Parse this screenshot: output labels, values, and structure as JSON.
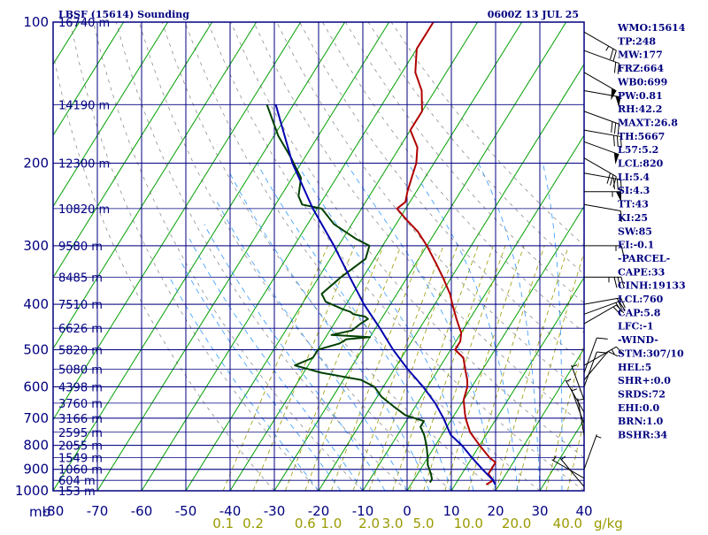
{
  "header": {
    "station": "LBSF (15614) Sounding",
    "time": "0600Z 13 JUL 25"
  },
  "stats": [
    "WMO:15614",
    "TP:248",
    "MW:177",
    "FRZ:664",
    "WB0:699",
    "PW:0.81",
    "RH:42.2",
    "MAXT:26.8",
    "TH:5667",
    "L57:5.2",
    "LCL:820",
    "LI:5.4",
    "SI:4.3",
    "TT:43",
    "KI:25",
    "SW:85",
    "EI:-0.1",
    "-PARCEL-",
    "CAPE:33",
    "CINH:19133",
    "LCL:760",
    "CAP:5.8",
    "LFC:-1",
    "-WIND-",
    "STM:307/10",
    "HEL:5",
    "SHR+:0.0",
    "SRDS:72",
    "EHI:0.0",
    "BRN:1.0",
    "BSHR:34"
  ],
  "colors": {
    "frame": "#000080",
    "isotherm": "#00a000",
    "temperature": "#b00000",
    "dewpoint": "#004000",
    "parcel": "#0000b0",
    "mixing_ratio": "#9a9a00",
    "moist_adiabat": "#3399ff",
    "wind_barb": "#000000"
  },
  "chart_data": {
    "type": "line",
    "xlabel": "",
    "ylabel": "mb",
    "ylim": [
      1000,
      100
    ],
    "xlim": [
      -80,
      40
    ],
    "y_scale": "log",
    "skew": true,
    "grid": true,
    "pressure_levels": [
      100,
      200,
      300,
      400,
      500,
      600,
      700,
      800,
      900,
      1000
    ],
    "pressure_labels": [
      "100",
      "200",
      "300",
      "400",
      "500",
      "600",
      "700",
      "800",
      "900",
      "1000"
    ],
    "temp_ticks": [
      -80,
      -70,
      -60,
      -50,
      -40,
      -30,
      -20,
      -10,
      0,
      10,
      20,
      30,
      40
    ],
    "temp_labels": [
      "-80",
      "-70",
      "-60",
      "-50",
      "-40",
      "-30",
      "-20",
      "-10",
      "0",
      "10",
      "20",
      "30",
      "40"
    ],
    "height_labels": [
      {
        "p": 100,
        "text": "16740 m"
      },
      {
        "p": 150,
        "text": "14190 m"
      },
      {
        "p": 200,
        "text": "12300 m"
      },
      {
        "p": 250,
        "text": "10820 m"
      },
      {
        "p": 300,
        "text": "9580 m"
      },
      {
        "p": 350,
        "text": "8485 m"
      },
      {
        "p": 400,
        "text": "7510 m"
      },
      {
        "p": 450,
        "text": "6626 m"
      },
      {
        "p": 500,
        "text": "5820 m"
      },
      {
        "p": 550,
        "text": "5080 m"
      },
      {
        "p": 600,
        "text": "4398 m"
      },
      {
        "p": 650,
        "text": "3760 m"
      },
      {
        "p": 700,
        "text": "3166 m"
      },
      {
        "p": 750,
        "text": "2595 m"
      },
      {
        "p": 800,
        "text": "2055 m"
      },
      {
        "p": 850,
        "text": "1549 m"
      },
      {
        "p": 900,
        "text": "1060 m"
      },
      {
        "p": 950,
        "text": "604 m"
      },
      {
        "p": 1000,
        "text": "153 m"
      }
    ],
    "mixing_ratio_labels": [
      {
        "w": 0.1,
        "text": "0.1"
      },
      {
        "w": 0.2,
        "text": "0.2"
      },
      {
        "w": 0.6,
        "text": "0.6"
      },
      {
        "w": 1.0,
        "text": "1.0"
      },
      {
        "w": 2.0,
        "text": "2.0"
      },
      {
        "w": 3.0,
        "text": "3.0"
      },
      {
        "w": 5.0,
        "text": "5.0"
      },
      {
        "w": 10.0,
        "text": "10.0"
      },
      {
        "w": 20.0,
        "text": "20.0"
      },
      {
        "w": 40.0,
        "text": "40.0"
      }
    ],
    "mixing_ratio_unit": "g/kg",
    "series": [
      {
        "key": "temperature",
        "points": [
          [
            100,
            -60
          ],
          [
            114,
            -60
          ],
          [
            128,
            -57
          ],
          [
            140,
            -53
          ],
          [
            155,
            -50
          ],
          [
            170,
            -50
          ],
          [
            185,
            -46
          ],
          [
            200,
            -44
          ],
          [
            215,
            -43
          ],
          [
            230,
            -42
          ],
          [
            242,
            -41
          ],
          [
            250,
            -42
          ],
          [
            265,
            -38
          ],
          [
            280,
            -34
          ],
          [
            300,
            -30
          ],
          [
            330,
            -25
          ],
          [
            350,
            -22
          ],
          [
            380,
            -18
          ],
          [
            400,
            -16
          ],
          [
            430,
            -13
          ],
          [
            450,
            -11
          ],
          [
            460,
            -10
          ],
          [
            480,
            -9
          ],
          [
            500,
            -9
          ],
          [
            520,
            -6
          ],
          [
            550,
            -4
          ],
          [
            580,
            -2
          ],
          [
            600,
            -1
          ],
          [
            640,
            0
          ],
          [
            680,
            2
          ],
          [
            700,
            3
          ],
          [
            750,
            6
          ],
          [
            800,
            10
          ],
          [
            850,
            14
          ],
          [
            870,
            16
          ],
          [
            900,
            16
          ],
          [
            920,
            16
          ],
          [
            950,
            18
          ],
          [
            970,
            17
          ]
        ]
      },
      {
        "key": "dewpoint",
        "points": [
          [
            150,
            -86
          ],
          [
            175,
            -79
          ],
          [
            195,
            -73
          ],
          [
            215,
            -68
          ],
          [
            235,
            -66
          ],
          [
            245,
            -64
          ],
          [
            250,
            -59
          ],
          [
            270,
            -54
          ],
          [
            290,
            -47
          ],
          [
            300,
            -43
          ],
          [
            320,
            -42
          ],
          [
            350,
            -45
          ],
          [
            380,
            -47
          ],
          [
            395,
            -45
          ],
          [
            410,
            -40
          ],
          [
            415,
            -38
          ],
          [
            420,
            -37
          ],
          [
            425,
            -34
          ],
          [
            430,
            -33
          ],
          [
            440,
            -34
          ],
          [
            455,
            -35
          ],
          [
            465,
            -39
          ],
          [
            470,
            -30
          ],
          [
            475,
            -35
          ],
          [
            485,
            -36
          ],
          [
            500,
            -40
          ],
          [
            520,
            -40
          ],
          [
            540,
            -43
          ],
          [
            560,
            -36
          ],
          [
            580,
            -26
          ],
          [
            600,
            -22
          ],
          [
            630,
            -19
          ],
          [
            660,
            -15
          ],
          [
            690,
            -11
          ],
          [
            710,
            -6
          ],
          [
            730,
            -6
          ],
          [
            760,
            -4
          ],
          [
            800,
            -2
          ],
          [
            850,
            0
          ],
          [
            880,
            1
          ],
          [
            920,
            3
          ],
          [
            945,
            4
          ],
          [
            960,
            4
          ]
        ]
      },
      {
        "key": "parcel",
        "points": [
          [
            150,
            -84
          ],
          [
            200,
            -72
          ],
          [
            250,
            -61
          ],
          [
            300,
            -51
          ],
          [
            350,
            -43
          ],
          [
            400,
            -36
          ],
          [
            450,
            -29
          ],
          [
            500,
            -23
          ],
          [
            550,
            -17
          ],
          [
            600,
            -11
          ],
          [
            650,
            -6
          ],
          [
            700,
            -2
          ],
          [
            760,
            2
          ],
          [
            800,
            6
          ],
          [
            850,
            10
          ],
          [
            900,
            14
          ],
          [
            950,
            18
          ],
          [
            970,
            19
          ]
        ]
      }
    ],
    "wind_barbs": [
      {
        "p": 105,
        "dir": 300,
        "spd": 25
      },
      {
        "p": 115,
        "dir": 290,
        "spd": 20
      },
      {
        "p": 128,
        "dir": 300,
        "spd": 50
      },
      {
        "p": 140,
        "dir": 280,
        "spd": 50
      },
      {
        "p": 155,
        "dir": 290,
        "spd": 30
      },
      {
        "p": 170,
        "dir": 280,
        "spd": 30
      },
      {
        "p": 180,
        "dir": 290,
        "spd": 50
      },
      {
        "p": 195,
        "dir": 300,
        "spd": 30
      },
      {
        "p": 210,
        "dir": 280,
        "spd": 30
      },
      {
        "p": 230,
        "dir": 270,
        "spd": 55
      },
      {
        "p": 245,
        "dir": 280,
        "spd": 10
      },
      {
        "p": 300,
        "dir": 270,
        "spd": 15
      },
      {
        "p": 350,
        "dir": 270,
        "spd": 35
      },
      {
        "p": 400,
        "dir": 260,
        "spd": 20
      },
      {
        "p": 420,
        "dir": 250,
        "spd": 20
      },
      {
        "p": 440,
        "dir": 240,
        "spd": 20
      },
      {
        "p": 540,
        "dir": 240,
        "spd": 15
      },
      {
        "p": 560,
        "dir": 200,
        "spd": 10
      },
      {
        "p": 580,
        "dir": 220,
        "spd": 10
      },
      {
        "p": 600,
        "dir": 200,
        "spd": 10
      },
      {
        "p": 640,
        "dir": 160,
        "spd": 5
      },
      {
        "p": 680,
        "dir": 150,
        "spd": 5
      },
      {
        "p": 720,
        "dir": 160,
        "spd": 5
      },
      {
        "p": 760,
        "dir": 170,
        "spd": 5
      },
      {
        "p": 900,
        "dir": 200,
        "spd": 5
      },
      {
        "p": 940,
        "dir": 120,
        "spd": 5
      },
      {
        "p": 980,
        "dir": 140,
        "spd": 5
      }
    ]
  }
}
